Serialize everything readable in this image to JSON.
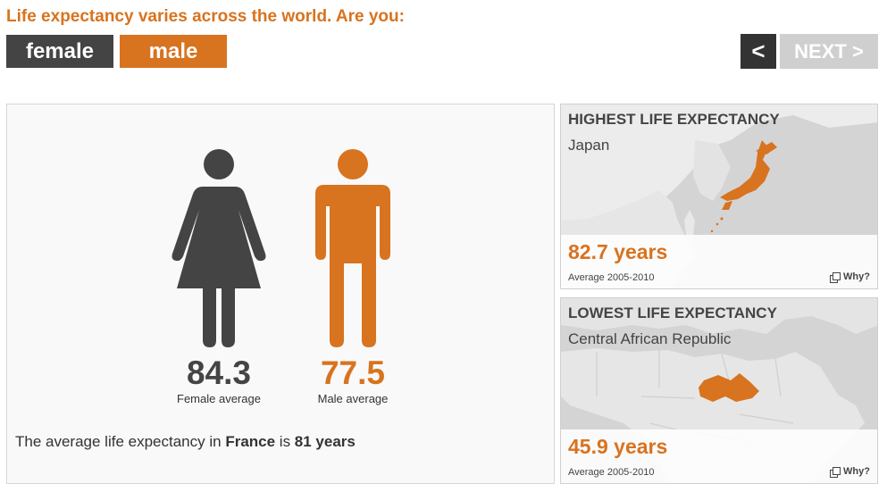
{
  "heading": "Life expectancy varies across the world. Are you:",
  "gender_buttons": {
    "female": "female",
    "male": "male"
  },
  "nav": {
    "prev": "<",
    "next": "NEXT >"
  },
  "colors": {
    "accent": "#d8731f",
    "dark": "#444444",
    "disabled": "#cfcfcf"
  },
  "main": {
    "female": {
      "value": "84.3",
      "label": "Female average",
      "icon": "female-figure-icon"
    },
    "male": {
      "value": "77.5",
      "label": "Male average",
      "icon": "male-figure-icon"
    },
    "summary": {
      "prefix": "The average life expectancy in ",
      "country": "France",
      "middle": " is ",
      "value": "81 years"
    }
  },
  "highest": {
    "title": "HIGHEST LIFE EXPECTANCY",
    "country": "Japan",
    "years": "82.7 years",
    "period": "Average 2005-2010",
    "why": "Why?",
    "map_icon": "japan-map-icon"
  },
  "lowest": {
    "title": "LOWEST LIFE EXPECTANCY",
    "country": "Central African Republic",
    "years": "45.9 years",
    "period": "Average 2005-2010",
    "why": "Why?",
    "map_icon": "africa-map-icon"
  }
}
